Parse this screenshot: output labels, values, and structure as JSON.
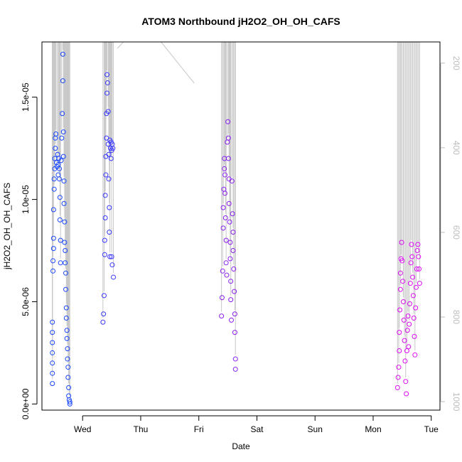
{
  "chart_data": {
    "type": "scatter",
    "title": "ATOM3 Northbound jH2O2_OH_OH_CAFS",
    "xlabel": "Date",
    "ylabel": "jH2O2_OH_OH_CAFS",
    "x_ticks": [
      "Wed",
      "Thu",
      "Fri",
      "Sat",
      "Sun",
      "Mon",
      "Tue"
    ],
    "x_tick_days": [
      1,
      2,
      3,
      4,
      5,
      6,
      7
    ],
    "xlim_days": [
      0.3,
      7.15
    ],
    "y_ticks": [
      "0.0e+00",
      "5.0e-06",
      "1.0e-05",
      "1.5e-05"
    ],
    "y_tick_values": [
      0,
      5e-06,
      1e-05,
      1.5e-05
    ],
    "ylim": [
      -3e-07,
      1.77e-05
    ],
    "right_axis_ticks": [
      "200",
      "400",
      "600",
      "800",
      "1000"
    ],
    "right_axis_values": [
      200,
      400,
      600,
      800,
      1000
    ],
    "right_axis_lim": [
      1020,
      150
    ],
    "grid": false,
    "colors": {
      "point_start": "#0050ff",
      "point_end": "#ff00ff",
      "altitude_line": "#c8c8c8",
      "right_axis": "#bdbdbd"
    },
    "flights": [
      {
        "name": "flight-1",
        "color": "#1a47ff",
        "points": [
          [
            0.48,
            1e-06
          ],
          [
            0.48,
            1.5e-06
          ],
          [
            0.48,
            2e-06
          ],
          [
            0.48,
            2.5e-06
          ],
          [
            0.48,
            3e-06
          ],
          [
            0.48,
            3.5e-06
          ],
          [
            0.48,
            4e-06
          ],
          [
            0.49,
            6.5e-06
          ],
          [
            0.49,
            7e-06
          ],
          [
            0.5,
            7.6e-06
          ],
          [
            0.5,
            8.1e-06
          ],
          [
            0.5,
            9.5e-06
          ],
          [
            0.51,
            1.05e-05
          ],
          [
            0.51,
            1.1e-05
          ],
          [
            0.52,
            1.15e-05
          ],
          [
            0.52,
            1.2e-05
          ],
          [
            0.53,
            1.25e-05
          ],
          [
            0.53,
            1.3e-05
          ],
          [
            0.54,
            1.32e-05
          ],
          [
            0.55,
            1.18e-05
          ],
          [
            0.56,
            1.16e-05
          ],
          [
            0.57,
            1.22e-05
          ],
          [
            0.58,
            1.17e-05
          ],
          [
            0.58,
            1.12e-05
          ],
          [
            0.59,
            1.2e-05
          ],
          [
            0.6,
            1.15e-05
          ],
          [
            0.6,
            1.1e-05
          ],
          [
            0.61,
            1.01e-05
          ],
          [
            0.61,
            9e-06
          ],
          [
            0.62,
            8e-06
          ],
          [
            0.62,
            6.9e-06
          ],
          [
            0.63,
            1.19e-05
          ],
          [
            0.64,
            1.3e-05
          ],
          [
            0.65,
            1.42e-05
          ],
          [
            0.66,
            1.71e-05
          ],
          [
            0.66,
            1.58e-05
          ],
          [
            0.67,
            1.33e-05
          ],
          [
            0.67,
            1.21e-05
          ],
          [
            0.68,
            1.09e-05
          ],
          [
            0.68,
            9.8e-06
          ],
          [
            0.69,
            8.9e-06
          ],
          [
            0.69,
            7.9e-06
          ],
          [
            0.7,
            7.5e-06
          ],
          [
            0.7,
            6.9e-06
          ],
          [
            0.71,
            6.4e-06
          ],
          [
            0.71,
            5.6e-06
          ],
          [
            0.72,
            4.7e-06
          ],
          [
            0.72,
            4.2e-06
          ],
          [
            0.73,
            3.6e-06
          ],
          [
            0.73,
            3.2e-06
          ],
          [
            0.74,
            2.7e-06
          ],
          [
            0.74,
            2.2e-06
          ],
          [
            0.75,
            1.8e-06
          ],
          [
            0.75,
            1.3e-06
          ],
          [
            0.76,
            8e-07
          ],
          [
            0.76,
            4e-07
          ],
          [
            0.77,
            2e-07
          ],
          [
            0.78,
            1e-07
          ],
          [
            0.78,
            0
          ]
        ]
      },
      {
        "name": "flight-2",
        "color": "#3a38ff",
        "points": [
          [
            1.35,
            4e-06
          ],
          [
            1.36,
            4.4e-06
          ],
          [
            1.37,
            5.3e-06
          ],
          [
            1.38,
            7.3e-06
          ],
          [
            1.38,
            8e-06
          ],
          [
            1.39,
            9.1e-06
          ],
          [
            1.39,
            1.02e-05
          ],
          [
            1.4,
            1.12e-05
          ],
          [
            1.4,
            1.21e-05
          ],
          [
            1.41,
            1.3e-05
          ],
          [
            1.41,
            1.42e-05
          ],
          [
            1.42,
            1.52e-05
          ],
          [
            1.42,
            1.61e-05
          ],
          [
            1.43,
            1.57e-05
          ],
          [
            1.44,
            1.43e-05
          ],
          [
            1.44,
            1.27e-05
          ],
          [
            1.45,
            1.22e-05
          ],
          [
            1.45,
            1.1e-05
          ],
          [
            1.46,
            9.6e-06
          ],
          [
            1.46,
            8.4e-06
          ],
          [
            1.47,
            7.2e-06
          ],
          [
            1.47,
            1.29e-05
          ],
          [
            1.48,
            1.25e-05
          ],
          [
            1.49,
            1.28e-05
          ],
          [
            1.49,
            1.2e-05
          ],
          [
            1.5,
            1.24e-05
          ],
          [
            1.5,
            7.2e-06
          ],
          [
            1.51,
            6.8e-06
          ],
          [
            1.51,
            1.27e-05
          ],
          [
            1.52,
            1.25e-05
          ],
          [
            1.53,
            6.2e-06
          ]
        ]
      },
      {
        "name": "flight-3",
        "color": "#8a20f0",
        "points": [
          [
            3.39,
            4.3e-06
          ],
          [
            3.4,
            5.2e-06
          ],
          [
            3.41,
            6.5e-06
          ],
          [
            3.42,
            8.6e-06
          ],
          [
            3.42,
            9.6e-06
          ],
          [
            3.43,
            1.05e-05
          ],
          [
            3.44,
            1.15e-05
          ],
          [
            3.44,
            1.2e-05
          ],
          [
            3.45,
            1.12e-05
          ],
          [
            3.45,
            1.03e-05
          ],
          [
            3.46,
            9.1e-06
          ],
          [
            3.47,
            8e-06
          ],
          [
            3.47,
            6.9e-06
          ],
          [
            3.48,
            6.3e-06
          ],
          [
            3.49,
            1.28e-05
          ],
          [
            3.5,
            1.38e-05
          ],
          [
            3.51,
            1.3e-05
          ],
          [
            3.51,
            1.2e-05
          ],
          [
            3.52,
            1.1e-05
          ],
          [
            3.52,
            9.8e-06
          ],
          [
            3.53,
            8.9e-06
          ],
          [
            3.54,
            7.9e-06
          ],
          [
            3.54,
            7.1e-06
          ],
          [
            3.55,
            6e-06
          ],
          [
            3.55,
            5.1e-06
          ],
          [
            3.56,
            4.1e-06
          ],
          [
            3.57,
            1.09e-05
          ],
          [
            3.58,
            9.3e-06
          ],
          [
            3.59,
            8.4e-06
          ],
          [
            3.59,
            7.5e-06
          ],
          [
            3.6,
            6.6e-06
          ],
          [
            3.61,
            5.5e-06
          ],
          [
            3.62,
            4.4e-06
          ],
          [
            3.62,
            3.5e-06
          ],
          [
            3.63,
            2.2e-06
          ],
          [
            3.63,
            1.7e-06
          ]
        ]
      },
      {
        "name": "flight-4",
        "color": "#dd0cf5",
        "points": [
          [
            6.42,
            8e-07
          ],
          [
            6.43,
            1.3e-06
          ],
          [
            6.44,
            1.8e-06
          ],
          [
            6.45,
            2.6e-06
          ],
          [
            6.45,
            3.5e-06
          ],
          [
            6.46,
            4.6e-06
          ],
          [
            6.47,
            5.6e-06
          ],
          [
            6.47,
            6.4e-06
          ],
          [
            6.48,
            7.1e-06
          ],
          [
            6.49,
            7.9e-06
          ],
          [
            6.5,
            7e-06
          ],
          [
            6.51,
            6e-06
          ],
          [
            6.52,
            5e-06
          ],
          [
            6.53,
            4.1e-06
          ],
          [
            6.54,
            3.1e-06
          ],
          [
            6.55,
            2.1e-06
          ],
          [
            6.56,
            1.1e-06
          ],
          [
            6.57,
            5e-07
          ],
          [
            6.58,
            2.6e-06
          ],
          [
            6.59,
            3.6e-06
          ],
          [
            6.6,
            4.3e-06
          ],
          [
            6.61,
            2.8e-06
          ],
          [
            6.62,
            3.9e-06
          ],
          [
            6.63,
            4.9e-06
          ],
          [
            6.64,
            5.9e-06
          ],
          [
            6.65,
            6.9e-06
          ],
          [
            6.66,
            7.8e-06
          ],
          [
            6.67,
            7.2e-06
          ],
          [
            6.68,
            6.2e-06
          ],
          [
            6.69,
            5.3e-06
          ],
          [
            6.7,
            4.2e-06
          ],
          [
            6.71,
            3.3e-06
          ],
          [
            6.72,
            2.4e-06
          ],
          [
            6.73,
            4.7e-06
          ],
          [
            6.74,
            5.7e-06
          ],
          [
            6.75,
            6.6e-06
          ],
          [
            6.76,
            7.5e-06
          ],
          [
            6.77,
            7.8e-06
          ],
          [
            6.78,
            7.2e-06
          ],
          [
            6.79,
            6.6e-06
          ],
          [
            6.8,
            5.9e-06
          ]
        ]
      }
    ]
  }
}
